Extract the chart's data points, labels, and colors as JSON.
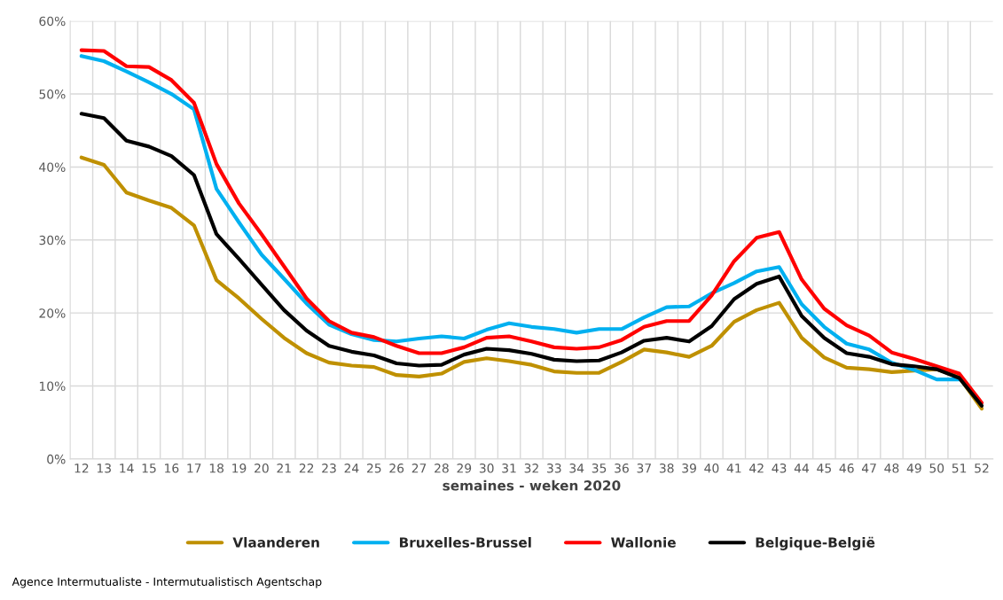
{
  "chart_data": {
    "type": "line",
    "categories": [
      "12",
      "13",
      "14",
      "15",
      "16",
      "17",
      "18",
      "19",
      "20",
      "21",
      "22",
      "23",
      "24",
      "25",
      "26",
      "27",
      "28",
      "29",
      "30",
      "31",
      "32",
      "33",
      "34",
      "35",
      "36",
      "37",
      "38",
      "39",
      "40",
      "41",
      "42",
      "43",
      "44",
      "45",
      "46",
      "47",
      "48",
      "49",
      "50",
      "51",
      "52"
    ],
    "series": [
      {
        "name": "Vlaanderen",
        "color": "#bf9000",
        "values": [
          41.3,
          40.3,
          36.5,
          35.4,
          34.4,
          32,
          24.5,
          22,
          19.2,
          16.6,
          14.5,
          13.2,
          12.8,
          12.6,
          11.5,
          11.3,
          11.7,
          13.3,
          13.8,
          13.4,
          12.9,
          12,
          11.8,
          11.8,
          13.3,
          15,
          14.6,
          14,
          15.5,
          18.8,
          20.4,
          21.4,
          16.6,
          13.9,
          12.5,
          12.3,
          11.9,
          12.1,
          12.3,
          11.2,
          6.9
        ]
      },
      {
        "name": "Bruxelles-Brussel",
        "color": "#00b0f0",
        "values": [
          55.2,
          54.5,
          53.1,
          51.6,
          50,
          47.9,
          37,
          32.4,
          28,
          24.7,
          21.3,
          18.4,
          17.1,
          16.3,
          16.1,
          16.5,
          16.8,
          16.5,
          17.7,
          18.6,
          18.1,
          17.8,
          17.3,
          17.8,
          17.8,
          19.4,
          20.8,
          20.9,
          22.7,
          24.1,
          25.7,
          26.3,
          21.2,
          18.1,
          15.8,
          15,
          13.2,
          12.2,
          10.9,
          10.9,
          null
        ]
      },
      {
        "name": "Wallonie",
        "color": "#ff0000",
        "values": [
          56,
          55.9,
          53.8,
          53.7,
          51.9,
          48.8,
          40.4,
          35,
          30.8,
          26.4,
          22,
          18.9,
          17.3,
          16.7,
          15.5,
          14.5,
          14.5,
          15.3,
          16.6,
          16.8,
          16.1,
          15.3,
          15.1,
          15.3,
          16.3,
          18.1,
          18.9,
          18.9,
          22.4,
          27.1,
          30.3,
          31.1,
          24.6,
          20.6,
          18.3,
          16.9,
          14.6,
          13.7,
          12.7,
          11.7,
          7.7
        ]
      },
      {
        "name": "Belgique-België",
        "color": "#000000",
        "values": [
          47.3,
          46.7,
          43.6,
          42.8,
          41.5,
          38.9,
          30.8,
          27.4,
          23.9,
          20.4,
          17.6,
          15.5,
          14.7,
          14.2,
          13.1,
          12.8,
          12.9,
          14.3,
          15.1,
          14.9,
          14.4,
          13.6,
          13.4,
          13.5,
          14.6,
          16.2,
          16.6,
          16.1,
          18.2,
          21.9,
          24,
          25,
          19.6,
          16.6,
          14.5,
          14,
          13,
          12.7,
          12.3,
          11.1,
          7.3
        ]
      }
    ],
    "xlabel": "semaines - weken 2020",
    "ylim": [
      0,
      60
    ],
    "yticks": [
      {
        "value": 0,
        "label": "0%"
      },
      {
        "value": 10,
        "label": "10%"
      },
      {
        "value": 20,
        "label": "20%"
      },
      {
        "value": 30,
        "label": "30%"
      },
      {
        "value": 40,
        "label": "40%"
      },
      {
        "value": 50,
        "label": "50%"
      },
      {
        "value": 60,
        "label": "60%"
      }
    ],
    "grid": true,
    "legend": "bottom",
    "marker": "none",
    "line_style": "solid",
    "annotations": [
      "Agence Intermutualiste - Intermutualistisch Agentschap"
    ]
  }
}
